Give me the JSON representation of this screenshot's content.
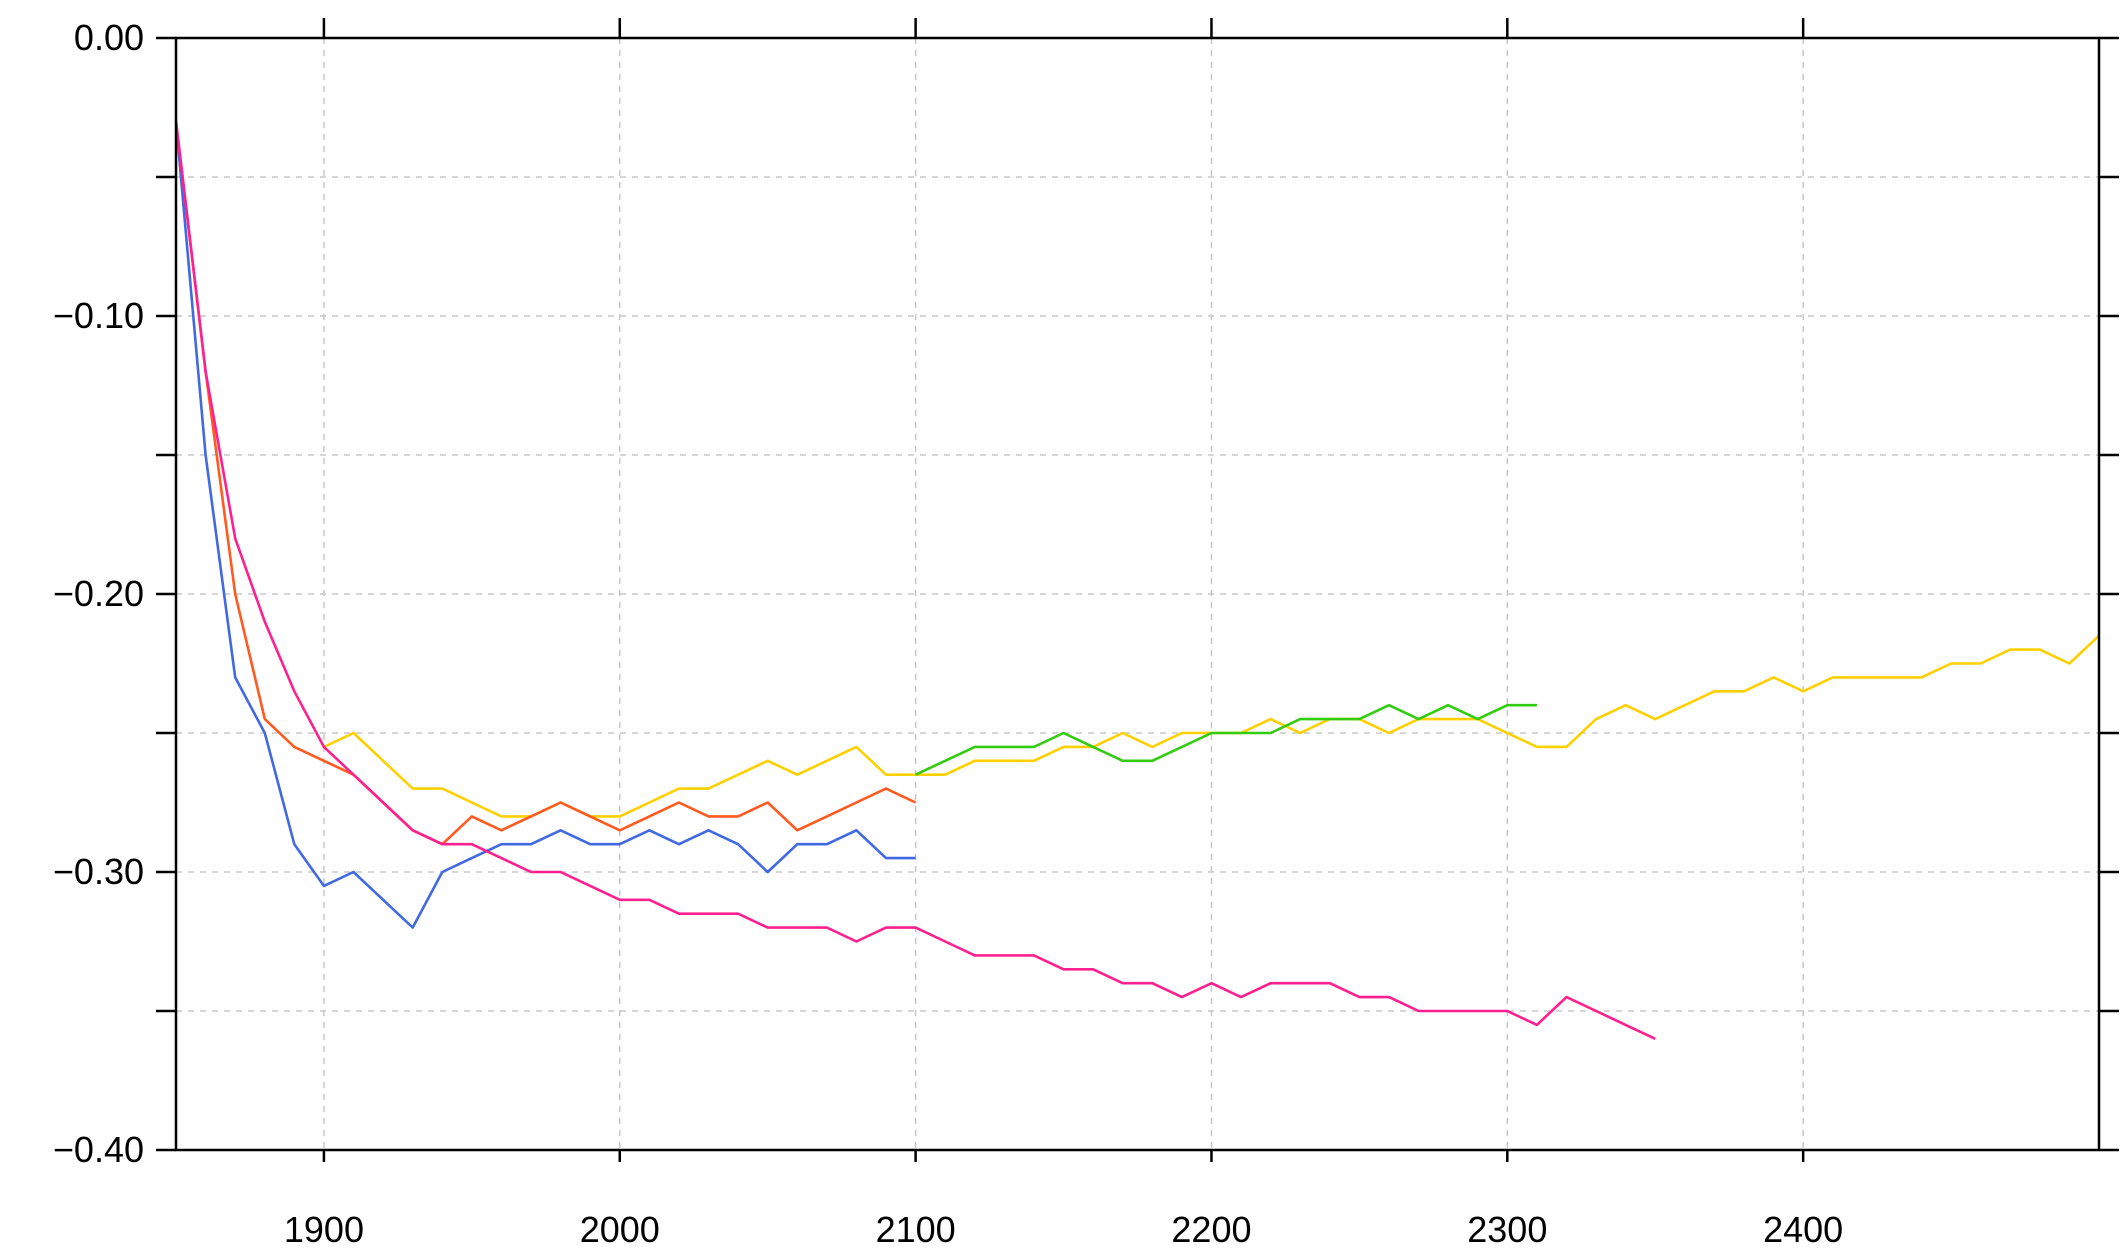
{
  "chart_data": {
    "type": "line",
    "xlim": [
      1850,
      2500
    ],
    "ylim": [
      -0.4,
      0.0
    ],
    "xticks": [
      1900,
      2000,
      2100,
      2200,
      2300,
      2400
    ],
    "yticks": [
      {
        "value": 0.0,
        "label": "0.00"
      },
      {
        "value": -0.1,
        "label": "−0.10"
      },
      {
        "value": -0.2,
        "label": "−0.20"
      },
      {
        "value": -0.3,
        "label": "−0.30"
      },
      {
        "value": -0.4,
        "label": "−0.40"
      }
    ],
    "yticks_minor": [
      -0.05,
      -0.15,
      -0.25,
      -0.35
    ],
    "grid": true,
    "series": [
      {
        "color": "#ffd000",
        "x": [
          1900,
          1910,
          1920,
          1930,
          1940,
          1950,
          1960,
          1970,
          1980,
          1990,
          2000,
          2010,
          2020,
          2030,
          2040,
          2050,
          2060,
          2070,
          2080,
          2090,
          2100,
          2110,
          2120,
          2130,
          2140,
          2150,
          2160,
          2170,
          2180,
          2190,
          2200,
          2210,
          2220,
          2230,
          2240,
          2250,
          2260,
          2270,
          2280,
          2290,
          2300,
          2310,
          2320,
          2330,
          2340,
          2350,
          2360,
          2370,
          2380,
          2390,
          2400,
          2410,
          2420,
          2430,
          2440,
          2450,
          2460,
          2470,
          2480,
          2490,
          2500
        ],
        "values": [
          -0.255,
          -0.25,
          -0.26,
          -0.27,
          -0.27,
          -0.275,
          -0.28,
          -0.28,
          -0.275,
          -0.28,
          -0.28,
          -0.275,
          -0.27,
          -0.27,
          -0.265,
          -0.26,
          -0.265,
          -0.26,
          -0.255,
          -0.265,
          -0.265,
          -0.265,
          -0.26,
          -0.26,
          -0.26,
          -0.255,
          -0.255,
          -0.25,
          -0.255,
          -0.25,
          -0.25,
          -0.25,
          -0.245,
          -0.25,
          -0.245,
          -0.245,
          -0.25,
          -0.245,
          -0.245,
          -0.245,
          -0.25,
          -0.255,
          -0.255,
          -0.245,
          -0.24,
          -0.245,
          -0.24,
          -0.235,
          -0.235,
          -0.23,
          -0.235,
          -0.23,
          -0.23,
          -0.23,
          -0.23,
          -0.225,
          -0.225,
          -0.22,
          -0.22,
          -0.225,
          -0.215
        ]
      },
      {
        "color": "#4169e1",
        "x": [
          1850,
          1860,
          1870,
          1880,
          1890,
          1900,
          1910,
          1920,
          1930,
          1940,
          1950,
          1960,
          1970,
          1980,
          1990,
          2000,
          2010,
          2020,
          2030,
          2040,
          2050,
          2060,
          2070,
          2080,
          2090,
          2100
        ],
        "values": [
          -0.03,
          -0.15,
          -0.23,
          -0.25,
          -0.29,
          -0.305,
          -0.3,
          -0.31,
          -0.32,
          -0.3,
          -0.295,
          -0.29,
          -0.29,
          -0.285,
          -0.29,
          -0.29,
          -0.285,
          -0.29,
          -0.285,
          -0.29,
          -0.3,
          -0.29,
          -0.29,
          -0.285,
          -0.295,
          -0.295
        ]
      },
      {
        "color": "#ff5a1f",
        "x": [
          1850,
          1860,
          1870,
          1880,
          1890,
          1900,
          1910,
          1920,
          1930,
          1940,
          1950,
          1960,
          1970,
          1980,
          1990,
          2000,
          2010,
          2020,
          2030,
          2040,
          2050,
          2060,
          2070,
          2080,
          2090,
          2100
        ],
        "values": [
          -0.03,
          -0.12,
          -0.2,
          -0.245,
          -0.255,
          -0.26,
          -0.265,
          -0.275,
          -0.285,
          -0.29,
          -0.28,
          -0.285,
          -0.28,
          -0.275,
          -0.28,
          -0.285,
          -0.28,
          -0.275,
          -0.28,
          -0.28,
          -0.275,
          -0.285,
          -0.28,
          -0.275,
          -0.27,
          -0.275
        ]
      },
      {
        "color": "#ff2090",
        "x": [
          1850,
          1860,
          1870,
          1880,
          1890,
          1900,
          1910,
          1920,
          1930,
          1940,
          1950,
          1960,
          1970,
          1980,
          1990,
          2000,
          2010,
          2020,
          2030,
          2040,
          2050,
          2060,
          2070,
          2080,
          2090,
          2100,
          2110,
          2120,
          2130,
          2140,
          2150,
          2160,
          2170,
          2180,
          2190,
          2200,
          2210,
          2220,
          2230,
          2240,
          2250,
          2260,
          2270,
          2280,
          2290,
          2300,
          2310,
          2320,
          2330,
          2340,
          2350
        ],
        "values": [
          -0.03,
          -0.12,
          -0.18,
          -0.21,
          -0.235,
          -0.255,
          -0.265,
          -0.275,
          -0.285,
          -0.29,
          -0.29,
          -0.295,
          -0.3,
          -0.3,
          -0.305,
          -0.31,
          -0.31,
          -0.315,
          -0.315,
          -0.315,
          -0.32,
          -0.32,
          -0.32,
          -0.325,
          -0.32,
          -0.32,
          -0.325,
          -0.33,
          -0.33,
          -0.33,
          -0.335,
          -0.335,
          -0.34,
          -0.34,
          -0.345,
          -0.34,
          -0.345,
          -0.34,
          -0.34,
          -0.34,
          -0.345,
          -0.345,
          -0.35,
          -0.35,
          -0.35,
          -0.35,
          -0.355,
          -0.345,
          -0.35,
          -0.355,
          -0.36
        ]
      },
      {
        "color": "#33cc11",
        "x": [
          2100,
          2110,
          2120,
          2130,
          2140,
          2150,
          2160,
          2170,
          2180,
          2190,
          2200,
          2210,
          2220,
          2230,
          2240,
          2250,
          2260,
          2270,
          2280,
          2290,
          2300,
          2310
        ],
        "values": [
          -0.265,
          -0.26,
          -0.255,
          -0.255,
          -0.255,
          -0.25,
          -0.255,
          -0.26,
          -0.26,
          -0.255,
          -0.25,
          -0.25,
          -0.25,
          -0.245,
          -0.245,
          -0.245,
          -0.24,
          -0.245,
          -0.24,
          -0.245,
          -0.24,
          -0.24
        ]
      }
    ]
  }
}
